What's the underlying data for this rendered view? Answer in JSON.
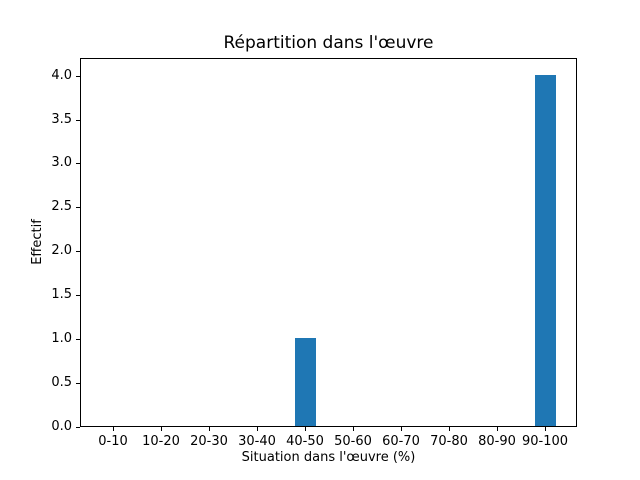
{
  "figure": {
    "background_color": "#ffffff",
    "axis_color": "#000000",
    "text_color": "#000000"
  },
  "chart_data": {
    "type": "bar",
    "title": "Répartition dans l'œuvre",
    "xlabel": "Situation dans l'œuvre (%)",
    "ylabel": "Effectif",
    "categories": [
      "0-10",
      "10-20",
      "20-30",
      "30-40",
      "40-50",
      "50-60",
      "60-70",
      "70-80",
      "80-90",
      "90-100"
    ],
    "values": [
      0,
      0,
      0,
      0,
      1,
      0,
      0,
      0,
      0,
      4
    ],
    "bar_color": "#1f77b4",
    "ytick_labels": [
      "0.0",
      "0.5",
      "1.0",
      "1.5",
      "2.0",
      "2.5",
      "3.0",
      "3.5",
      "4.0"
    ],
    "yticks": [
      0.0,
      0.5,
      1.0,
      1.5,
      2.0,
      2.5,
      3.0,
      3.5,
      4.0
    ],
    "ylim": [
      0,
      4.2
    ],
    "grid": false,
    "legend": null
  }
}
